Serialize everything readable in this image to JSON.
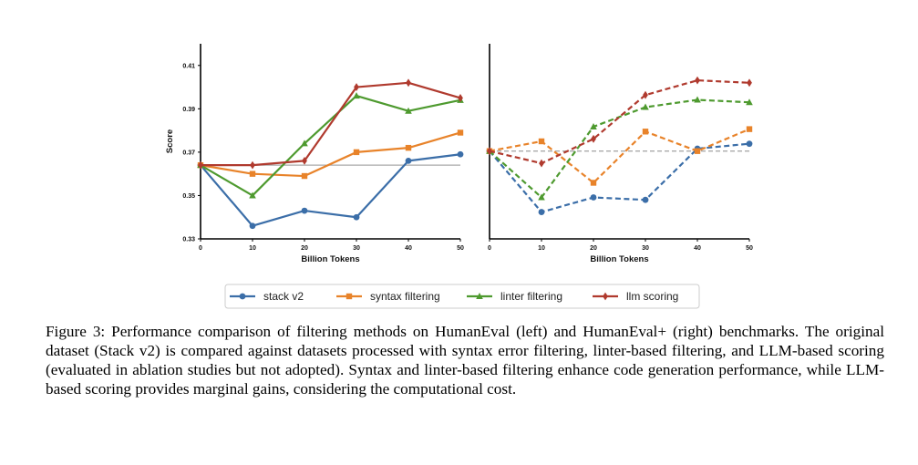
{
  "chart_data": [
    {
      "type": "line",
      "panel": "left",
      "xlabel": "Billion Tokens",
      "ylabel": "Score",
      "x": [
        0,
        10,
        20,
        30,
        40,
        50
      ],
      "xlim": [
        0,
        50
      ],
      "ylim": [
        0.33,
        0.42
      ],
      "yticks": [
        "0.33",
        "0.35",
        "0.37",
        "0.39",
        "0.41"
      ],
      "xticks": [
        "0",
        "10",
        "20",
        "30",
        "40",
        "50"
      ],
      "baseline": 0.364,
      "line_style": "solid",
      "series": [
        {
          "name": "stack v2",
          "color": "#3b6ea8",
          "marker": "circle",
          "values": [
            0.364,
            0.336,
            0.343,
            0.34,
            0.366,
            0.369
          ]
        },
        {
          "name": "syntax filtering",
          "color": "#e8832a",
          "marker": "square",
          "values": [
            0.364,
            0.36,
            0.359,
            0.37,
            0.372,
            0.379
          ]
        },
        {
          "name": "linter filtering",
          "color": "#4e9a2f",
          "marker": "triangle",
          "values": [
            0.364,
            0.35,
            0.374,
            0.396,
            0.389,
            0.394
          ]
        },
        {
          "name": "llm scoring",
          "color": "#b03a2e",
          "marker": "diamond",
          "values": [
            0.364,
            0.364,
            0.366,
            0.4,
            0.402,
            0.395
          ]
        }
      ]
    },
    {
      "type": "line",
      "panel": "right",
      "xlabel": "Billion Tokens",
      "ylabel": "",
      "x": [
        0,
        10,
        20,
        30,
        40,
        50
      ],
      "xlim": [
        0,
        50
      ],
      "ylim": [
        0.3,
        0.38
      ],
      "yticks": [],
      "xticks": [
        "0",
        "10",
        "20",
        "30",
        "40",
        "50"
      ],
      "baseline": 0.336,
      "line_style": "dashed",
      "series": [
        {
          "name": "stack v2",
          "color": "#3b6ea8",
          "marker": "circle",
          "values": [
            0.336,
            0.311,
            0.317,
            0.316,
            0.337,
            0.339
          ]
        },
        {
          "name": "syntax filtering",
          "color": "#e8832a",
          "marker": "square",
          "values": [
            0.336,
            0.34,
            0.323,
            0.344,
            0.336,
            0.345
          ]
        },
        {
          "name": "linter filtering",
          "color": "#4e9a2f",
          "marker": "triangle",
          "values": [
            0.336,
            0.317,
            0.346,
            0.354,
            0.357,
            0.356
          ]
        },
        {
          "name": "llm scoring",
          "color": "#b03a2e",
          "marker": "diamond",
          "values": [
            0.336,
            0.331,
            0.341,
            0.359,
            0.365,
            0.364
          ]
        }
      ]
    }
  ],
  "legend": {
    "placement": "bottom-center",
    "items": [
      "stack v2",
      "syntax filtering",
      "linter filtering",
      "llm scoring"
    ]
  },
  "caption": "Figure 3: Performance comparison of filtering methods on HumanEval (left) and HumanEval+ (right) benchmarks. The original dataset (Stack v2) is compared against datasets processed with syntax error filtering, linter-based filtering, and LLM-based scoring (evaluated in ablation studies but not adopted). Syntax and linter-based filtering enhance code generation performance, while LLM-based scoring provides marginal gains, considering the computational cost."
}
